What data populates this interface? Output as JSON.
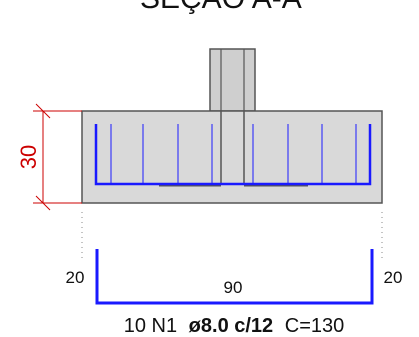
{
  "title": "SEÇÃO A-A",
  "dimension": {
    "height_value": "30"
  },
  "bar_shape": {
    "left_leg": "20",
    "bottom_length": "90",
    "right_leg": "20"
  },
  "bar_spec": {
    "count_and_mark": "10 N1",
    "diameter_spacing": "ø8.0 c/12",
    "total_length": "C=130"
  },
  "colors": {
    "concrete_fill": "#d9d9d9",
    "rebar": "#1a1aff",
    "dimension": "#cc0000",
    "outline": "#555555"
  }
}
